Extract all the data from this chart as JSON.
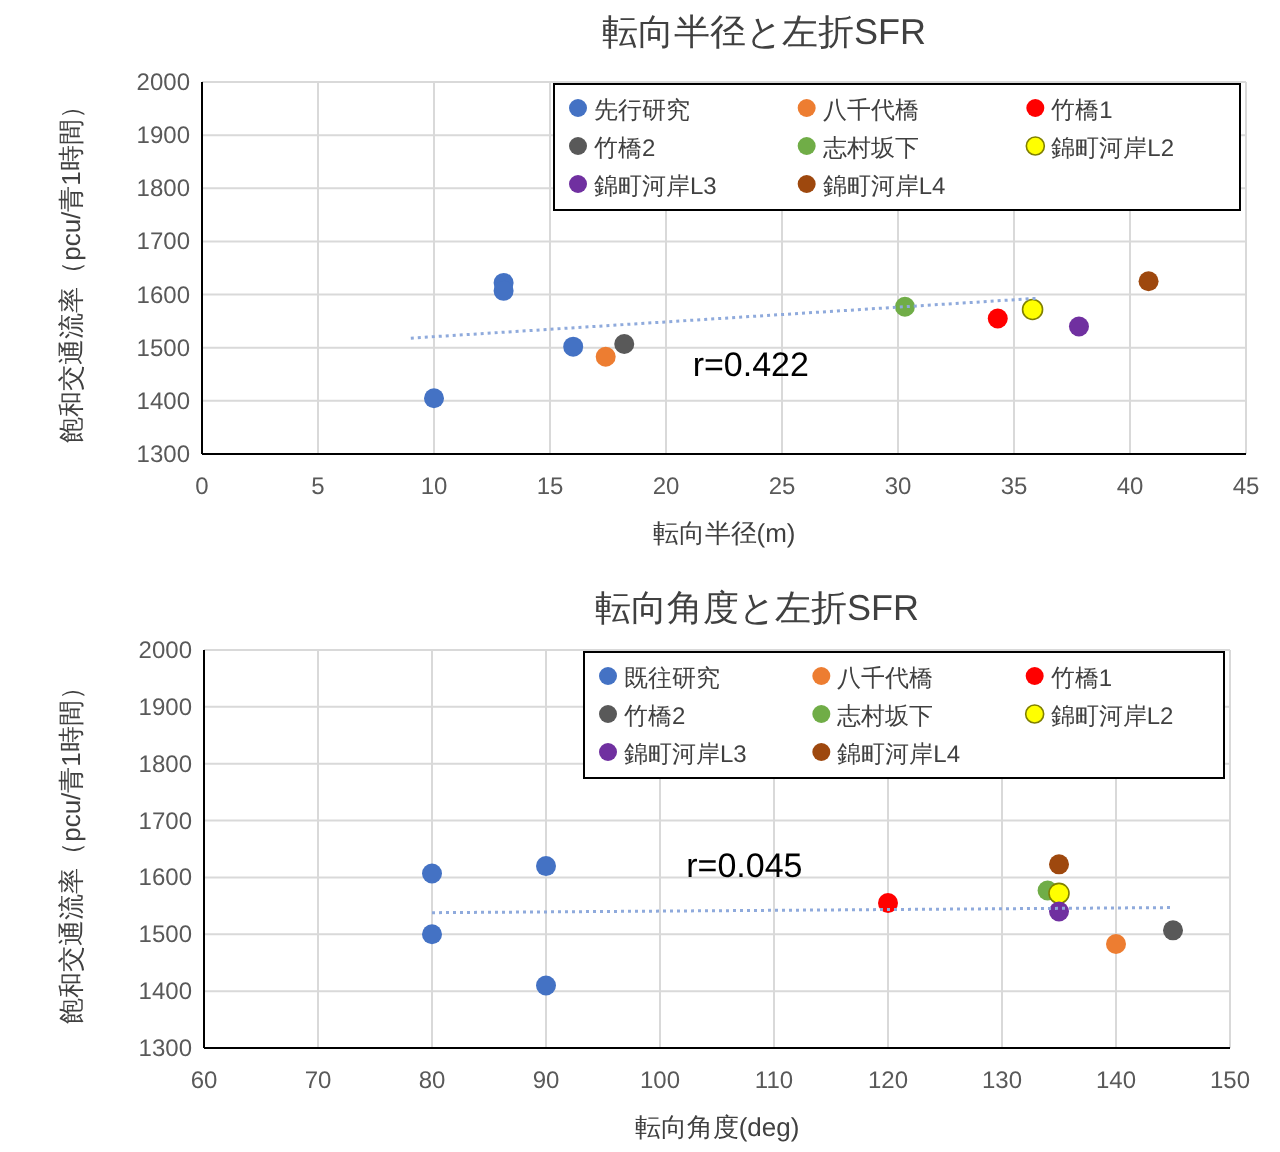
{
  "chart_data": [
    {
      "type": "scatter",
      "title": "転向半径と左折SFR",
      "xlabel": "転向半径(m)",
      "ylabel": "飽和交通流率（pcu/青1時間）",
      "xlim": [
        0,
        45
      ],
      "xticks": [
        0,
        5,
        10,
        15,
        20,
        25,
        30,
        35,
        40,
        45
      ],
      "ylim": [
        1300,
        2000
      ],
      "yticks": [
        1300,
        1400,
        1500,
        1600,
        1700,
        1800,
        1900,
        2000
      ],
      "grid": true,
      "legend": "top right",
      "marker": "circle",
      "annotations": [
        "r=0.422"
      ],
      "series": [
        {
          "name": "先行研究",
          "color": "#4472c4",
          "x": [
            13,
            13,
            10,
            16
          ],
          "values": [
            1622,
            1607,
            1405,
            1502
          ]
        },
        {
          "name": "八千代橋",
          "color": "#ed7d31",
          "x": [
            17.4
          ],
          "values": [
            1483
          ]
        },
        {
          "name": "竹橋1",
          "color": "#ff0000",
          "x": [
            34.3
          ],
          "values": [
            1555
          ]
        },
        {
          "name": "竹橋2",
          "color": "#595959",
          "x": [
            18.2
          ],
          "values": [
            1507
          ]
        },
        {
          "name": "志村坂下",
          "color": "#70ad47",
          "x": [
            30.3
          ],
          "values": [
            1577
          ]
        },
        {
          "name": "錦町河岸L2",
          "color": "#ffff00",
          "x": [
            35.8
          ],
          "values": [
            1572
          ]
        },
        {
          "name": "錦町河岸L3",
          "color": "#7030a0",
          "x": [
            37.8
          ],
          "values": [
            1540
          ]
        },
        {
          "name": "錦町河岸L4",
          "color": "#9e480e",
          "x": [
            40.8
          ],
          "values": [
            1625
          ]
        },
        {
          "type": "line",
          "line_style": "dotted",
          "marker": "none",
          "color": "#8faadc",
          "x": [
            9,
            36
          ],
          "values": [
            1518,
            1593
          ]
        }
      ]
    },
    {
      "type": "scatter",
      "title": "転向角度と左折SFR",
      "xlabel": "転向角度(deg)",
      "ylabel": "飽和交通流率（pcu/青1時間）",
      "xlim": [
        60,
        150
      ],
      "xticks": [
        60,
        70,
        80,
        90,
        100,
        110,
        120,
        130,
        140,
        150
      ],
      "ylim": [
        1300,
        2000
      ],
      "yticks": [
        1300,
        1400,
        1500,
        1600,
        1700,
        1800,
        1900,
        2000
      ],
      "grid": true,
      "legend": "top right",
      "marker": "circle",
      "annotations": [
        "r=0.045"
      ],
      "series": [
        {
          "name": "既往研究",
          "color": "#4472c4",
          "x": [
            80,
            80,
            90,
            90
          ],
          "values": [
            1607,
            1500,
            1620,
            1410
          ]
        },
        {
          "name": "八千代橋",
          "color": "#ed7d31",
          "x": [
            140
          ],
          "values": [
            1483
          ]
        },
        {
          "name": "竹橋1",
          "color": "#ff0000",
          "x": [
            120
          ],
          "values": [
            1555
          ]
        },
        {
          "name": "竹橋2",
          "color": "#595959",
          "x": [
            145
          ],
          "values": [
            1507
          ]
        },
        {
          "name": "志村坂下",
          "color": "#70ad47",
          "x": [
            134
          ],
          "values": [
            1577
          ]
        },
        {
          "name": "錦町河岸L2",
          "color": "#ffff00",
          "x": [
            135
          ],
          "values": [
            1572
          ]
        },
        {
          "name": "錦町河岸L3",
          "color": "#7030a0",
          "x": [
            135
          ],
          "values": [
            1540
          ]
        },
        {
          "name": "錦町河岸L4",
          "color": "#9e480e",
          "x": [
            135
          ],
          "values": [
            1623
          ]
        },
        {
          "type": "line",
          "line_style": "dotted",
          "marker": "none",
          "color": "#8faadc",
          "x": [
            80,
            145
          ],
          "values": [
            1538,
            1547
          ]
        }
      ]
    }
  ]
}
